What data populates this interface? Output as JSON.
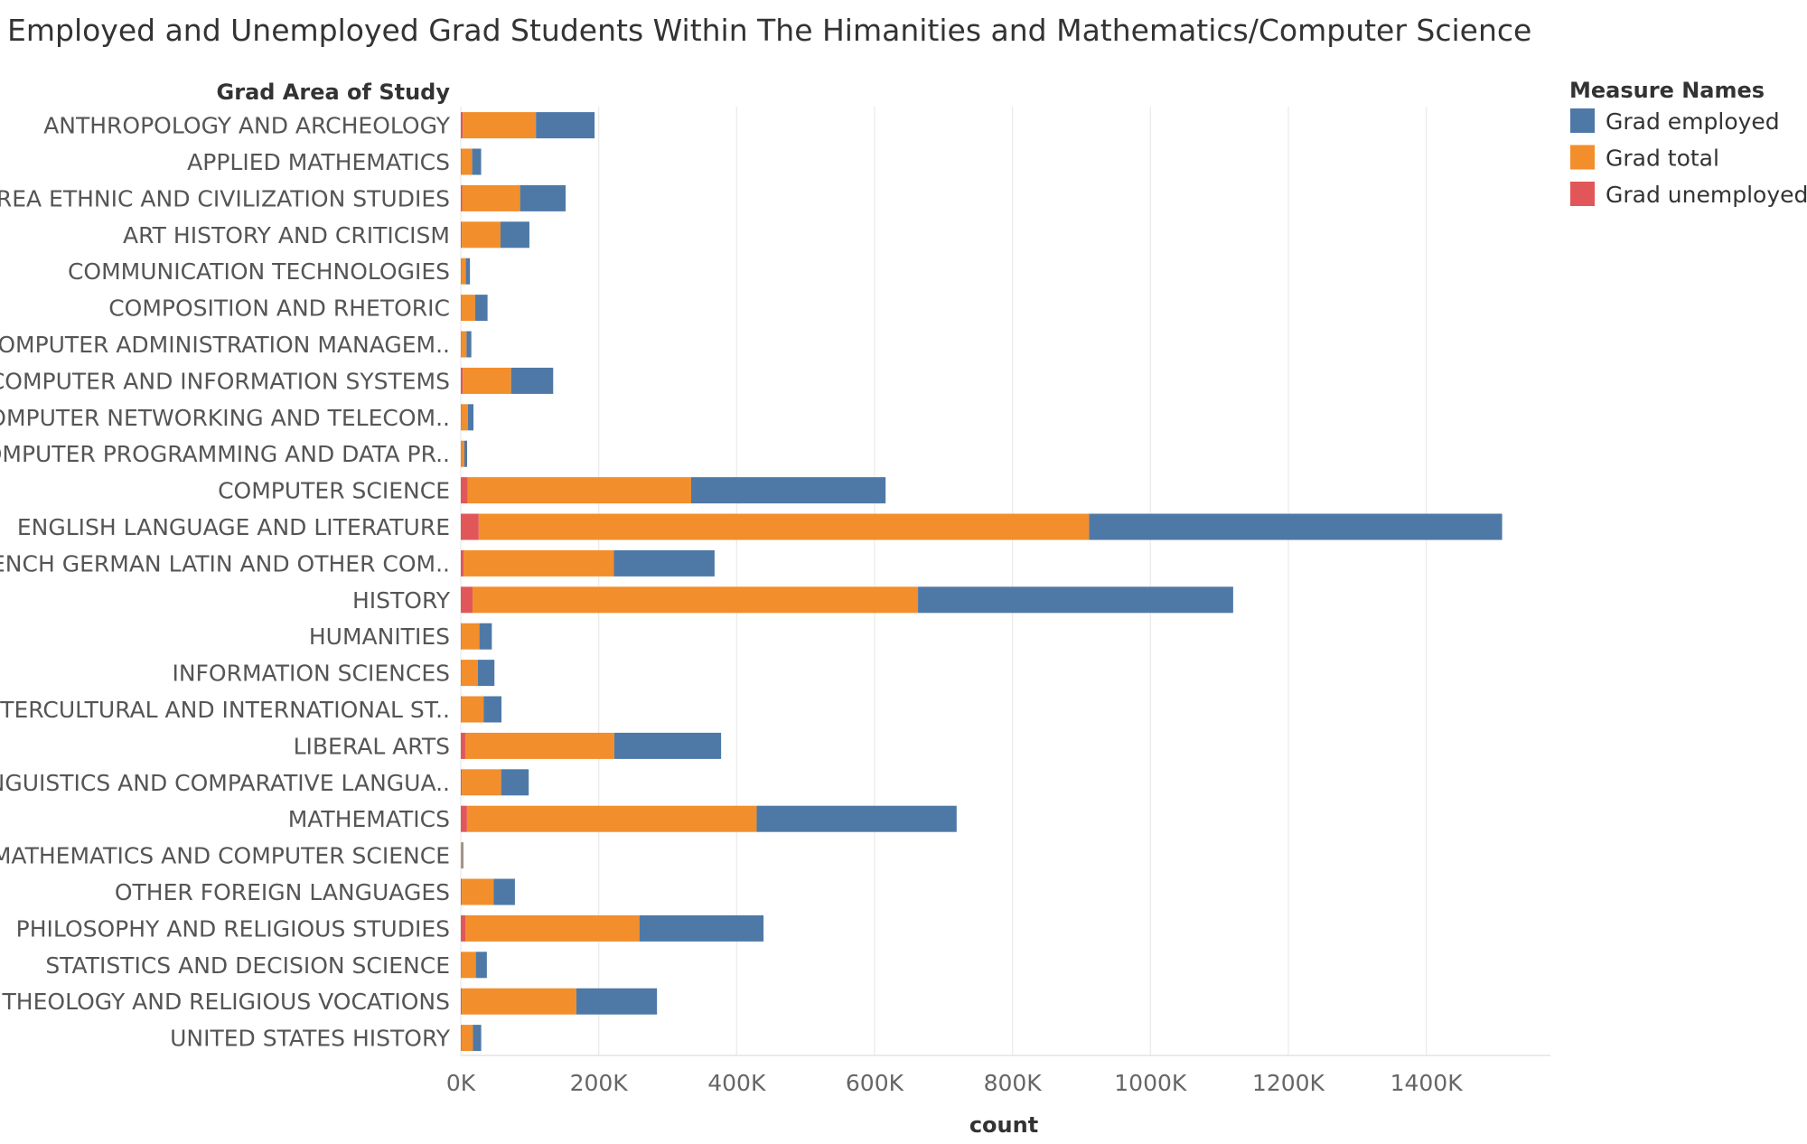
{
  "chart_data": {
    "type": "bar",
    "orientation": "horizontal",
    "stacked": true,
    "title": "Employed and Unemployed Grad Students Within The Himanities and Mathematics/Computer Science",
    "category_axis_title": "Grad Area of Study",
    "xlabel": "count",
    "xlim": [
      0,
      1580000
    ],
    "x_ticks": [
      0,
      200000,
      400000,
      600000,
      800000,
      1000000,
      1200000,
      1400000
    ],
    "x_tick_labels": [
      "0K",
      "200K",
      "400K",
      "600K",
      "800K",
      "1000K",
      "1200K",
      "1400K"
    ],
    "grid": "vertical",
    "legend": {
      "title": "Measure Names",
      "placement": "top-right",
      "items": [
        {
          "name": "Grad employed",
          "color": "#4e79a7"
        },
        {
          "name": "Grad total",
          "color": "#f28e2b"
        },
        {
          "name": "Grad unemployed",
          "color": "#e15759"
        }
      ]
    },
    "categories": [
      "ANTHROPOLOGY AND ARCHEOLOGY",
      "APPLIED MATHEMATICS",
      "AREA ETHNIC AND CIVILIZATION STUDIES",
      "ART HISTORY AND CRITICISM",
      "COMMUNICATION TECHNOLOGIES",
      "COMPOSITION AND RHETORIC",
      "COMPUTER ADMINISTRATION MANAGEM..",
      "COMPUTER AND INFORMATION SYSTEMS",
      "COMPUTER NETWORKING AND TELECOM..",
      "COMPUTER PROGRAMMING AND DATA PR..",
      "COMPUTER SCIENCE",
      "ENGLISH LANGUAGE AND LITERATURE",
      "FRENCH GERMAN LATIN AND OTHER COM..",
      "HISTORY",
      "HUMANITIES",
      "INFORMATION SCIENCES",
      "INTERCULTURAL AND INTERNATIONAL ST..",
      "LIBERAL ARTS",
      "LINGUISTICS AND COMPARATIVE LANGUA..",
      "MATHEMATICS",
      "MATHEMATICS AND COMPUTER SCIENCE",
      "OTHER FOREIGN LANGUAGES",
      "PHILOSOPHY AND RELIGIOUS STUDIES",
      "STATISTICS AND DECISION SCIENCE",
      "THEOLOGY AND RELIGIOUS VOCATIONS",
      "UNITED STATES HISTORY"
    ],
    "series": [
      {
        "name": "Grad unemployed",
        "color": "#e15759",
        "values": [
          3000,
          500,
          2000,
          1500,
          300,
          800,
          300,
          3000,
          400,
          200,
          10000,
          26000,
          4000,
          17000,
          1000,
          800,
          1000,
          6500,
          1500,
          9000,
          100,
          1500,
          7000,
          800,
          1500,
          600
        ]
      },
      {
        "name": "Grad total",
        "color": "#f28e2b",
        "values": [
          106000,
          16000,
          84000,
          56000,
          7000,
          20000,
          8000,
          70000,
          10000,
          5000,
          324000,
          885000,
          218000,
          646000,
          26000,
          24000,
          32000,
          216000,
          57000,
          420000,
          2000,
          46000,
          252000,
          21000,
          166000,
          17000
        ]
      },
      {
        "name": "Grad employed",
        "color": "#4e79a7",
        "values": [
          85000,
          13000,
          66000,
          42000,
          6000,
          18000,
          7000,
          61000,
          8000,
          4000,
          282000,
          599000,
          146000,
          457000,
          18000,
          24000,
          26000,
          155000,
          40000,
          290000,
          1500,
          31000,
          180000,
          16000,
          117000,
          12000
        ]
      }
    ]
  }
}
